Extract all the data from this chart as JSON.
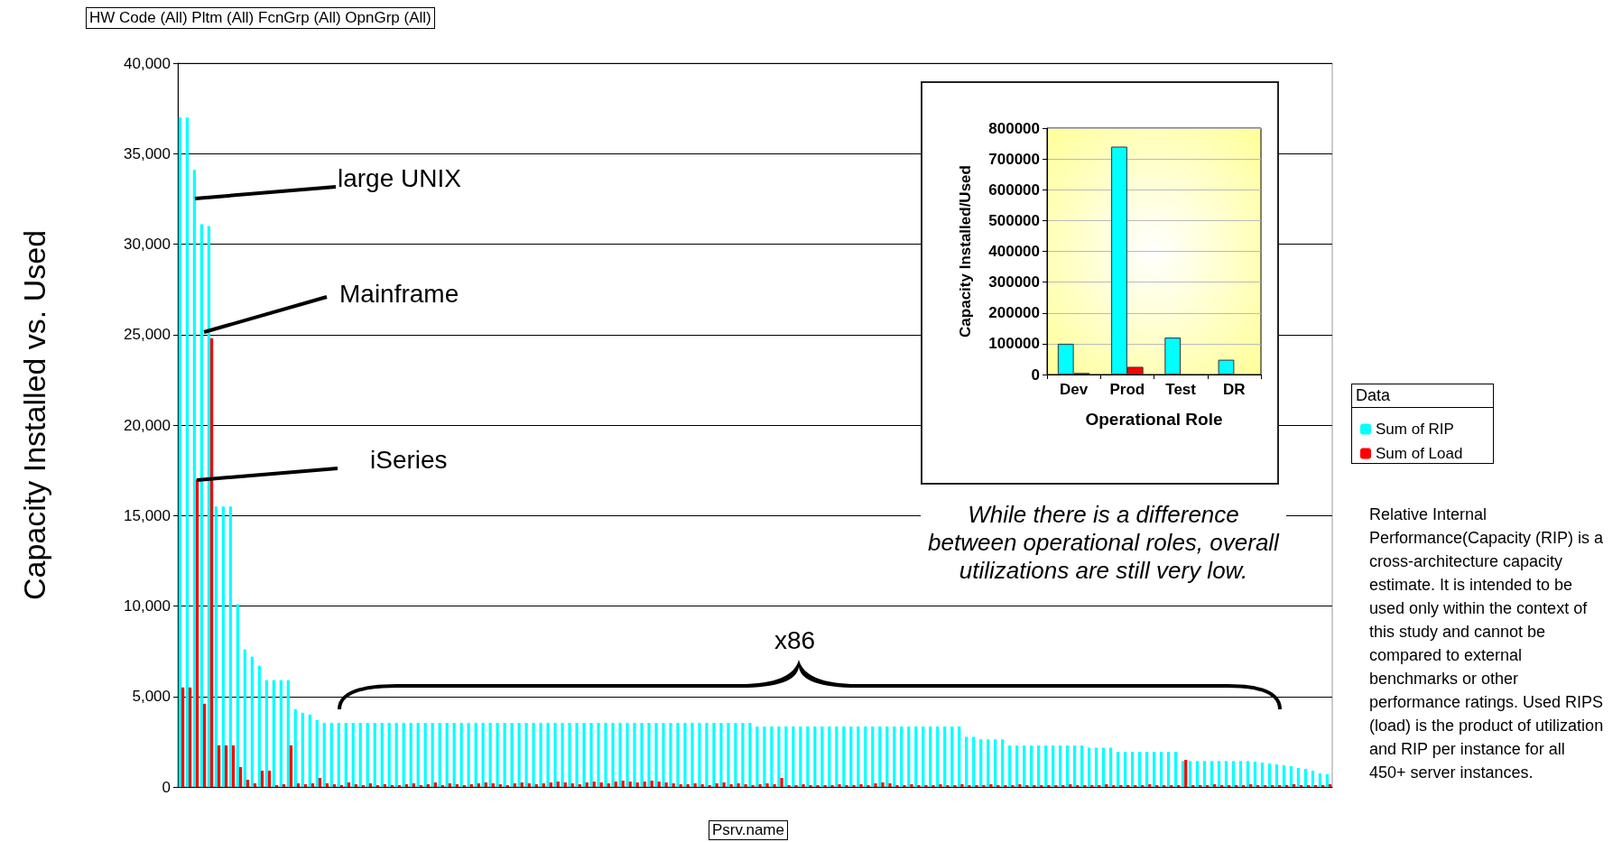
{
  "chart_data": [
    {
      "type": "bar",
      "ylabel": "Capacity Installed vs. Used",
      "xlabel": "Psrv.name",
      "legend_title": "Data",
      "legend": "right",
      "grid": "y",
      "tick_labels": "y",
      "ylim": [
        0,
        40000
      ],
      "yticks": [
        {
          "value": 0,
          "label": "0"
        },
        {
          "value": 5000,
          "label": "5,000"
        },
        {
          "value": 10000,
          "label": "10,000"
        },
        {
          "value": 15000,
          "label": "15,000"
        },
        {
          "value": 20000,
          "label": "20,000"
        },
        {
          "value": 25000,
          "label": "25,000"
        },
        {
          "value": 30000,
          "label": "30,000"
        },
        {
          "value": 35000,
          "label": "35,000"
        },
        {
          "value": 40000,
          "label": "40,000"
        }
      ],
      "annotations": [
        "HW Code (All) Pltm (All) FcnGrp (All) OpnGrp (All)",
        "large UNIX",
        "Mainframe",
        "iSeries",
        "x86",
        "While there is a difference between operational roles, overall utilizations are still very low.",
        "Relative Internal Performance(Capacity (RIP) is a cross-architecture capacity estimate.  It is intended to be used only within the context of this study and cannot be compared to external benchmarks or other performance ratings.  Used RIPS (load) is the product of utilization and RIP per instance for all 450+ server instances."
      ],
      "categories": [
        null,
        null,
        null,
        null,
        null,
        null,
        null,
        null,
        null,
        null,
        null,
        null,
        null,
        null,
        null,
        null,
        null,
        null,
        null,
        null,
        null,
        null,
        null,
        null,
        null,
        null,
        null,
        null,
        null,
        null,
        null,
        null,
        null,
        null,
        null,
        null,
        null,
        null,
        null,
        null,
        null,
        null,
        null,
        null,
        null,
        null,
        null,
        null,
        null,
        null,
        null,
        null,
        null,
        null,
        null,
        null,
        null,
        null,
        null,
        null,
        null,
        null,
        null,
        null,
        null,
        null,
        null,
        null,
        null,
        null,
        null,
        null,
        null,
        null,
        null,
        null,
        null,
        null,
        null,
        null,
        null,
        null,
        null,
        null,
        null,
        null,
        null,
        null,
        null,
        null,
        null,
        null,
        null,
        null,
        null,
        null,
        null,
        null,
        null,
        null,
        null,
        null,
        null,
        null,
        null,
        null,
        null,
        null,
        null,
        null,
        null,
        null,
        null,
        null,
        null,
        null,
        null,
        null,
        null,
        null,
        null,
        null,
        null,
        null,
        null,
        null,
        null,
        null,
        null,
        null,
        null,
        null,
        null,
        null,
        null,
        null,
        null,
        null,
        null,
        null,
        null,
        null,
        null,
        null,
        null,
        null,
        null,
        null,
        null,
        null,
        null,
        null,
        null,
        null,
        null,
        null,
        null,
        null,
        null,
        null
      ],
      "series": [
        {
          "name": "Sum of RIP",
          "color": "#00ffff",
          "values": [
            37000,
            37000,
            34100,
            31100,
            31000,
            15500,
            15500,
            15500,
            10100,
            7600,
            7200,
            6700,
            5900,
            5900,
            5900,
            5900,
            4300,
            4100,
            4000,
            3700,
            3540,
            3540,
            3540,
            3540,
            3540,
            3540,
            3540,
            3540,
            3540,
            3540,
            3540,
            3540,
            3540,
            3540,
            3540,
            3540,
            3540,
            3540,
            3540,
            3540,
            3540,
            3540,
            3540,
            3540,
            3540,
            3540,
            3540,
            3540,
            3540,
            3540,
            3540,
            3540,
            3540,
            3540,
            3540,
            3540,
            3540,
            3540,
            3540,
            3540,
            3540,
            3540,
            3540,
            3540,
            3540,
            3540,
            3540,
            3540,
            3540,
            3540,
            3540,
            3540,
            3540,
            3540,
            3540,
            3540,
            3540,
            3540,
            3540,
            3540,
            3340,
            3340,
            3340,
            3340,
            3340,
            3340,
            3340,
            3340,
            3340,
            3340,
            3340,
            3340,
            3340,
            3340,
            3340,
            3340,
            3340,
            3340,
            3340,
            3340,
            3340,
            3340,
            3340,
            3340,
            3340,
            3340,
            3340,
            3340,
            3340,
            2770,
            2770,
            2630,
            2630,
            2630,
            2630,
            2290,
            2290,
            2290,
            2290,
            2290,
            2290,
            2290,
            2290,
            2290,
            2290,
            2290,
            2170,
            2170,
            2170,
            2170,
            1940,
            1940,
            1940,
            1940,
            1940,
            1940,
            1940,
            1940,
            1940,
            1430,
            1430,
            1430,
            1430,
            1430,
            1430,
            1430,
            1430,
            1430,
            1430,
            1400,
            1350,
            1300,
            1250,
            1200,
            1150,
            1050,
            1000,
            900,
            750,
            710
          ]
        },
        {
          "name": "Sum of Load",
          "color": "#ff0000",
          "values": [
            5500,
            5500,
            17000,
            4600,
            24800,
            2300,
            2300,
            2300,
            1100,
            400,
            200,
            900,
            900,
            100,
            150,
            2300,
            200,
            150,
            200,
            500,
            200,
            150,
            100,
            250,
            150,
            100,
            200,
            100,
            150,
            100,
            100,
            150,
            200,
            100,
            150,
            250,
            100,
            200,
            150,
            100,
            150,
            200,
            250,
            200,
            150,
            100,
            200,
            250,
            200,
            150,
            200,
            250,
            300,
            250,
            200,
            150,
            250,
            300,
            250,
            200,
            300,
            350,
            300,
            250,
            300,
            350,
            300,
            250,
            200,
            150,
            150,
            200,
            150,
            100,
            200,
            250,
            150,
            200,
            150,
            100,
            150,
            200,
            150,
            500,
            100,
            100,
            150,
            100,
            100,
            100,
            100,
            150,
            100,
            100,
            150,
            100,
            200,
            250,
            200,
            100,
            100,
            150,
            100,
            100,
            100,
            150,
            100,
            100,
            150,
            100,
            100,
            100,
            150,
            100,
            100,
            100,
            150,
            100,
            100,
            100,
            100,
            100,
            100,
            150,
            100,
            100,
            100,
            100,
            150,
            100,
            100,
            100,
            100,
            100,
            150,
            100,
            100,
            100,
            100,
            1500,
            100,
            100,
            100,
            150,
            100,
            100,
            100,
            100,
            150,
            100,
            100,
            100,
            100,
            100,
            150,
            100,
            100,
            100,
            100,
            150
          ]
        }
      ]
    },
    {
      "type": "bar",
      "xlabel": "Operational Role",
      "ylabel": "Capacity Installed/Used",
      "grid": "y",
      "ylim": [
        0,
        800000
      ],
      "yticks": [
        0,
        100000,
        200000,
        300000,
        400000,
        500000,
        600000,
        700000,
        800000
      ],
      "categories": [
        "Dev",
        "Prod",
        "Test",
        "DR"
      ],
      "series": [
        {
          "color": "#00ffff",
          "values": [
            100000,
            740000,
            120000,
            48000
          ]
        },
        {
          "color": "#ff0000",
          "values": [
            5000,
            25000,
            null,
            null
          ]
        }
      ]
    }
  ]
}
